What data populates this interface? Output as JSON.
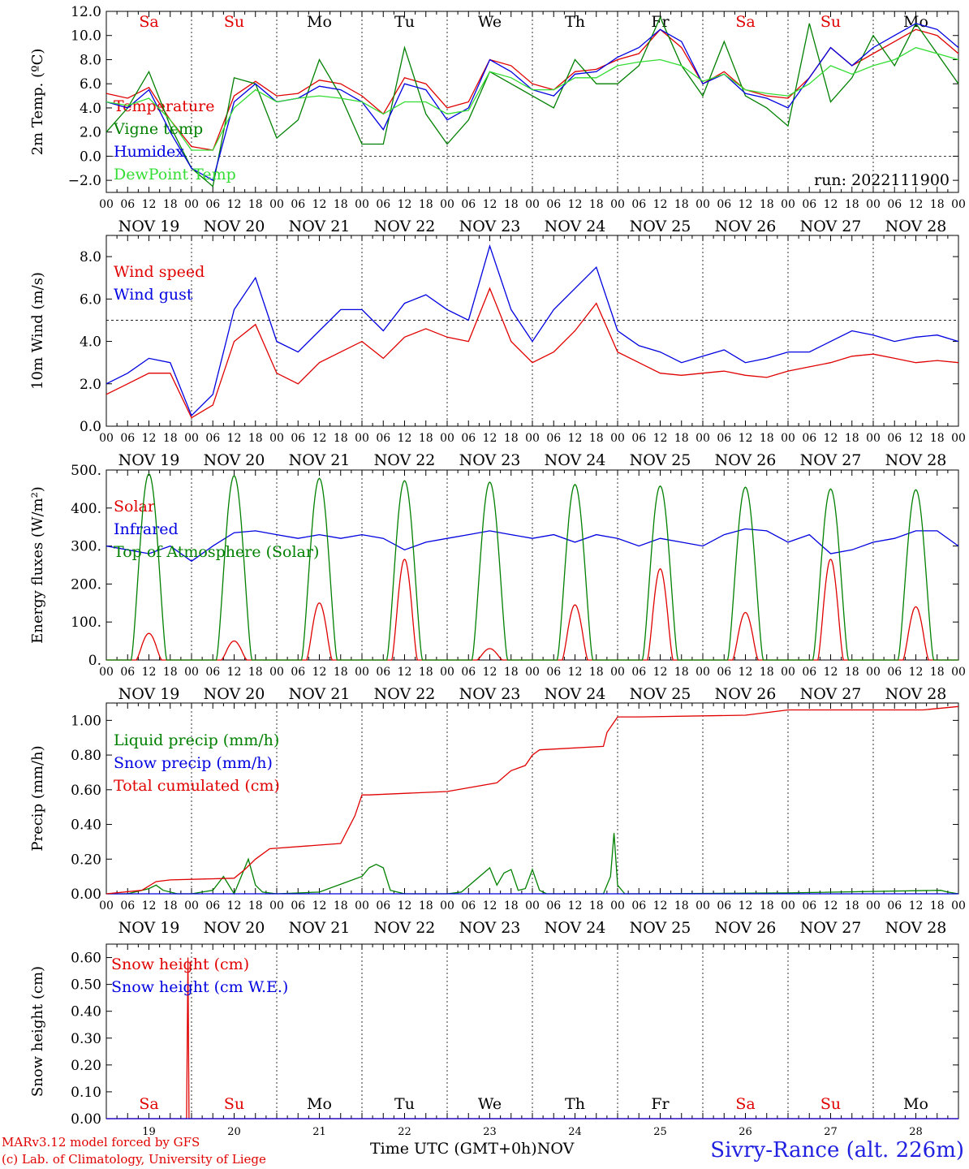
{
  "colors": {
    "red": "#e00000",
    "green": "#008000",
    "blue": "#0000e0",
    "lightgreen": "#33dd33",
    "axis": "#000000"
  },
  "days": [
    "NOV 19",
    "NOV 20",
    "NOV 21",
    "NOV 22",
    "NOV 23",
    "NOV 24",
    "NOV 25",
    "NOV 26",
    "NOV 27",
    "NOV 28"
  ],
  "weekdays": [
    "Sa",
    "Su",
    "Mo",
    "Tu",
    "We",
    "Th",
    "Fr",
    "Sa",
    "Su",
    "Mo"
  ],
  "weekday_colors": [
    "#e00000",
    "#e00000",
    "#000000",
    "#000000",
    "#000000",
    "#000000",
    "#000000",
    "#e00000",
    "#e00000",
    "#000000"
  ],
  "day_numbers": [
    "19",
    "20",
    "21",
    "22",
    "23",
    "24",
    "25",
    "26",
    "27",
    "28"
  ],
  "hour_ticks": [
    "00",
    "06",
    "12",
    "18"
  ],
  "last_tick": "00",
  "footer": {
    "credit_line1": "MARv3.12 model forced by GFS",
    "credit_line2": "(c) Lab. of Climatology, University of Liege",
    "x_axis_label": "Time UTC (GMT+0h)",
    "month": "NOV",
    "station": "Sivry-Rance (alt. 226m)"
  },
  "chart_data": [
    {
      "type": "line",
      "ylabel": "2m Temp. (ºC)",
      "ylim": [
        -3,
        12
      ],
      "yticks": [
        12,
        10,
        8,
        6,
        4,
        2,
        0,
        -2
      ],
      "ytick_labels": [
        "12.0",
        "10.0",
        "8.0",
        "6.0",
        "4.0",
        "2.0",
        "0.0",
        "−2.0"
      ],
      "hline": 0,
      "annotation": "run: 2022111900",
      "x_unit": "hours since NOV 19 00 UTC",
      "series": [
        {
          "name": "Temperature",
          "color": "#e00000",
          "x": [
            0,
            6,
            12,
            18,
            24,
            30,
            36,
            42,
            48,
            54,
            60,
            66,
            72,
            78,
            84,
            90,
            96,
            102,
            108,
            114,
            120,
            126,
            132,
            138,
            144,
            150,
            156,
            162,
            168,
            174,
            180,
            186,
            192,
            198,
            204,
            210,
            216,
            222,
            228,
            234,
            240
          ],
          "y": [
            5.2,
            4.8,
            5.7,
            3.0,
            0.8,
            0.5,
            5.0,
            6.2,
            5.0,
            5.2,
            6.3,
            6.0,
            5.0,
            3.5,
            6.5,
            6.0,
            4.0,
            4.5,
            8.0,
            7.5,
            6.0,
            5.5,
            7.0,
            7.2,
            8.0,
            8.5,
            10.5,
            9.0,
            6.0,
            7.0,
            5.5,
            5.0,
            4.8,
            6.5,
            9.0,
            7.5,
            8.5,
            9.5,
            10.5,
            10.0,
            8.5
          ]
        },
        {
          "name": "Vigne temp",
          "color": "#008000",
          "x": [
            0,
            6,
            12,
            18,
            24,
            30,
            36,
            42,
            48,
            54,
            60,
            66,
            72,
            78,
            84,
            90,
            96,
            102,
            108,
            114,
            120,
            126,
            132,
            138,
            144,
            150,
            156,
            162,
            168,
            174,
            180,
            186,
            192,
            198,
            204,
            210,
            216,
            222,
            228,
            234,
            240
          ],
          "y": [
            2.0,
            4.0,
            7.0,
            2.5,
            -1.0,
            -2.5,
            6.5,
            6.0,
            1.5,
            3.0,
            8.0,
            5.0,
            1.0,
            1.0,
            9.0,
            3.5,
            1.0,
            3.0,
            7.0,
            6.0,
            5.0,
            4.0,
            8.0,
            6.0,
            6.0,
            7.5,
            11.5,
            7.5,
            5.0,
            9.5,
            5.0,
            4.0,
            2.5,
            11.0,
            4.5,
            6.5,
            10.0,
            7.5,
            11.0,
            8.5,
            6.0
          ]
        },
        {
          "name": "Humidex",
          "color": "#0000e0",
          "x": [
            0,
            6,
            12,
            18,
            24,
            30,
            36,
            42,
            48,
            54,
            60,
            66,
            72,
            78,
            84,
            90,
            96,
            102,
            108,
            114,
            120,
            126,
            132,
            138,
            144,
            150,
            156,
            162,
            168,
            174,
            180,
            186,
            192,
            198,
            204,
            210,
            216,
            222,
            228,
            234,
            240
          ],
          "y": [
            4.5,
            4.0,
            5.5,
            2.0,
            -1.0,
            -2.0,
            4.5,
            6.0,
            4.5,
            4.8,
            5.8,
            5.5,
            4.5,
            2.2,
            6.0,
            5.5,
            3.0,
            4.0,
            8.0,
            7.0,
            5.5,
            5.0,
            6.8,
            7.0,
            8.2,
            9.0,
            10.5,
            9.5,
            6.0,
            6.8,
            5.2,
            4.8,
            4.0,
            6.5,
            9.0,
            7.5,
            9.0,
            10.0,
            11.0,
            10.5,
            9.0
          ]
        },
        {
          "name": "DewPoint Temp",
          "color": "#33dd33",
          "x": [
            0,
            6,
            12,
            18,
            24,
            30,
            36,
            42,
            48,
            54,
            60,
            66,
            72,
            78,
            84,
            90,
            96,
            102,
            108,
            114,
            120,
            126,
            132,
            138,
            144,
            150,
            156,
            162,
            168,
            174,
            180,
            186,
            192,
            198,
            204,
            210,
            216,
            222,
            228,
            234,
            240
          ],
          "y": [
            4.5,
            4.2,
            4.8,
            3.0,
            0.5,
            0.5,
            4.0,
            5.5,
            4.5,
            4.8,
            5.0,
            4.8,
            4.5,
            3.5,
            4.5,
            4.5,
            3.5,
            3.8,
            7.0,
            6.5,
            5.5,
            5.5,
            6.5,
            6.5,
            7.5,
            7.8,
            8.0,
            7.5,
            6.2,
            6.8,
            5.5,
            5.2,
            5.0,
            6.0,
            7.5,
            6.8,
            7.5,
            8.0,
            9.0,
            8.5,
            8.0
          ]
        }
      ]
    },
    {
      "type": "line",
      "ylabel": "10m Wind (m/s)",
      "ylim": [
        0,
        9
      ],
      "yticks": [
        8,
        6,
        4,
        2,
        0
      ],
      "ytick_labels": [
        "8.0",
        "6.0",
        "4.0",
        "2.0",
        "0.0"
      ],
      "hline": 5,
      "x_unit": "hours since NOV 19 00 UTC",
      "series": [
        {
          "name": "Wind speed",
          "color": "#e00000",
          "x": [
            0,
            6,
            12,
            18,
            24,
            30,
            36,
            42,
            48,
            54,
            60,
            66,
            72,
            78,
            84,
            90,
            96,
            102,
            108,
            114,
            120,
            126,
            132,
            138,
            144,
            150,
            156,
            162,
            168,
            174,
            180,
            186,
            192,
            198,
            204,
            210,
            216,
            222,
            228,
            234,
            240
          ],
          "y": [
            1.5,
            2.0,
            2.5,
            2.5,
            0.4,
            1.0,
            4.0,
            4.8,
            2.5,
            2.0,
            3.0,
            3.5,
            4.0,
            3.2,
            4.2,
            4.6,
            4.2,
            4.0,
            6.5,
            4.0,
            3.0,
            3.5,
            4.5,
            5.8,
            3.5,
            3.0,
            2.5,
            2.4,
            2.5,
            2.6,
            2.4,
            2.3,
            2.6,
            2.8,
            3.0,
            3.3,
            3.4,
            3.2,
            3.0,
            3.1,
            3.0
          ]
        },
        {
          "name": "Wind gust",
          "color": "#0000e0",
          "x": [
            0,
            6,
            12,
            18,
            24,
            30,
            36,
            42,
            48,
            54,
            60,
            66,
            72,
            78,
            84,
            90,
            96,
            102,
            108,
            114,
            120,
            126,
            132,
            138,
            144,
            150,
            156,
            162,
            168,
            174,
            180,
            186,
            192,
            198,
            204,
            210,
            216,
            222,
            228,
            234,
            240
          ],
          "y": [
            2.0,
            2.5,
            3.2,
            3.0,
            0.5,
            1.5,
            5.5,
            7.0,
            4.0,
            3.5,
            4.5,
            5.5,
            5.5,
            4.5,
            5.8,
            6.2,
            5.5,
            5.0,
            8.5,
            5.5,
            4.0,
            5.5,
            6.5,
            7.5,
            4.5,
            3.8,
            3.5,
            3.0,
            3.3,
            3.6,
            3.0,
            3.2,
            3.5,
            3.5,
            4.0,
            4.5,
            4.3,
            4.0,
            4.2,
            4.3,
            4.0
          ]
        }
      ]
    },
    {
      "type": "line",
      "ylabel": "Energy fluxes (W/m²)",
      "ylim": [
        0,
        500
      ],
      "yticks": [
        500,
        400,
        300,
        200,
        100,
        0
      ],
      "ytick_labels": [
        "500.",
        "400.",
        "300.",
        "200.",
        "100.",
        "0."
      ],
      "x_unit": "hours since NOV 19 00 UTC",
      "daily_peaks_hour_utc": 12,
      "series": [
        {
          "name": "Solar",
          "color": "#e00000",
          "daily_peaks": [
            70,
            50,
            150,
            265,
            30,
            145,
            240,
            125,
            265,
            140
          ]
        },
        {
          "name": "Infrared",
          "color": "#0000e0",
          "x": [
            0,
            6,
            12,
            18,
            24,
            30,
            36,
            42,
            48,
            54,
            60,
            66,
            72,
            78,
            84,
            90,
            96,
            102,
            108,
            114,
            120,
            126,
            132,
            138,
            144,
            150,
            156,
            162,
            168,
            174,
            180,
            186,
            192,
            198,
            204,
            210,
            216,
            222,
            228,
            234,
            240
          ],
          "y": [
            300,
            290,
            280,
            300,
            260,
            300,
            335,
            340,
            330,
            320,
            330,
            320,
            330,
            320,
            290,
            310,
            320,
            330,
            340,
            330,
            320,
            330,
            310,
            330,
            320,
            300,
            320,
            310,
            300,
            330,
            345,
            340,
            310,
            330,
            280,
            290,
            310,
            320,
            340,
            340,
            300
          ]
        },
        {
          "name": "Top of Atmosphere (Solar)",
          "color": "#008000",
          "daily_peaks": [
            490,
            485,
            478,
            472,
            468,
            462,
            458,
            455,
            450,
            448
          ]
        }
      ]
    },
    {
      "type": "line",
      "ylabel": "Precip (mm/h)",
      "ylim": [
        0,
        1.1
      ],
      "yticks": [
        1.0,
        0.8,
        0.6,
        0.4,
        0.2,
        0.0
      ],
      "ytick_labels": [
        "1.00",
        "0.80",
        "0.60",
        "0.40",
        "0.20",
        "0.00"
      ],
      "x_unit": "hours since NOV 19 00 UTC",
      "series": [
        {
          "name": "Liquid precip (mm/h)",
          "color": "#008000",
          "x": [
            0,
            6,
            8,
            12,
            14,
            16,
            20,
            24,
            30,
            33,
            36,
            40,
            42,
            44,
            48,
            60,
            72,
            74,
            76,
            78,
            80,
            82,
            84,
            96,
            100,
            108,
            110,
            112,
            114,
            116,
            118,
            120,
            122,
            124,
            140,
            142,
            143,
            144,
            146,
            150,
            192,
            235,
            237,
            240
          ],
          "y": [
            0,
            0,
            0.01,
            0.03,
            0.05,
            0.02,
            0.0,
            0.0,
            0.02,
            0.1,
            0.0,
            0.2,
            0.05,
            0.01,
            0,
            0.01,
            0.1,
            0.15,
            0.17,
            0.15,
            0.02,
            0.01,
            0,
            0,
            0.01,
            0.15,
            0.05,
            0.12,
            0.14,
            0.02,
            0.03,
            0.14,
            0.02,
            0,
            0,
            0.1,
            0.35,
            0.05,
            0,
            0,
            0.005,
            0.02,
            0.01,
            0
          ]
        },
        {
          "name": "Snow precip (mm/h)",
          "color": "#0000e0",
          "x": [
            0,
            240
          ],
          "y": [
            0,
            0
          ]
        },
        {
          "name": "Total cumulated (cm)",
          "color": "#e00000",
          "x": [
            0,
            10,
            14,
            18,
            36,
            39,
            42,
            46,
            66,
            70,
            72,
            74,
            96,
            110,
            114,
            118,
            120,
            122,
            140,
            141,
            144,
            150,
            180,
            192,
            230,
            240
          ],
          "y": [
            0,
            0.02,
            0.07,
            0.08,
            0.09,
            0.14,
            0.2,
            0.26,
            0.29,
            0.45,
            0.57,
            0.57,
            0.59,
            0.64,
            0.71,
            0.74,
            0.8,
            0.83,
            0.85,
            0.93,
            1.02,
            1.02,
            1.03,
            1.06,
            1.06,
            1.08
          ]
        }
      ]
    },
    {
      "type": "line",
      "ylabel": "Snow height (cm)",
      "ylim": [
        0,
        0.65
      ],
      "yticks": [
        0.6,
        0.5,
        0.4,
        0.3,
        0.2,
        0.1,
        0.0
      ],
      "ytick_labels": [
        "0.60",
        "0.50",
        "0.40",
        "0.30",
        "0.20",
        "0.10",
        "0.00"
      ],
      "x_unit": "hours since NOV 19 00 UTC",
      "series": [
        {
          "name": "Snow height (cm)",
          "color": "#e00000",
          "x": [
            0,
            22.6,
            23.0,
            23.3,
            240
          ],
          "y": [
            0,
            0,
            0.6,
            0,
            0
          ]
        },
        {
          "name": "Snow height (cm W.E.)",
          "color": "#0000e0",
          "x": [
            0,
            240
          ],
          "y": [
            0,
            0
          ]
        }
      ]
    }
  ]
}
